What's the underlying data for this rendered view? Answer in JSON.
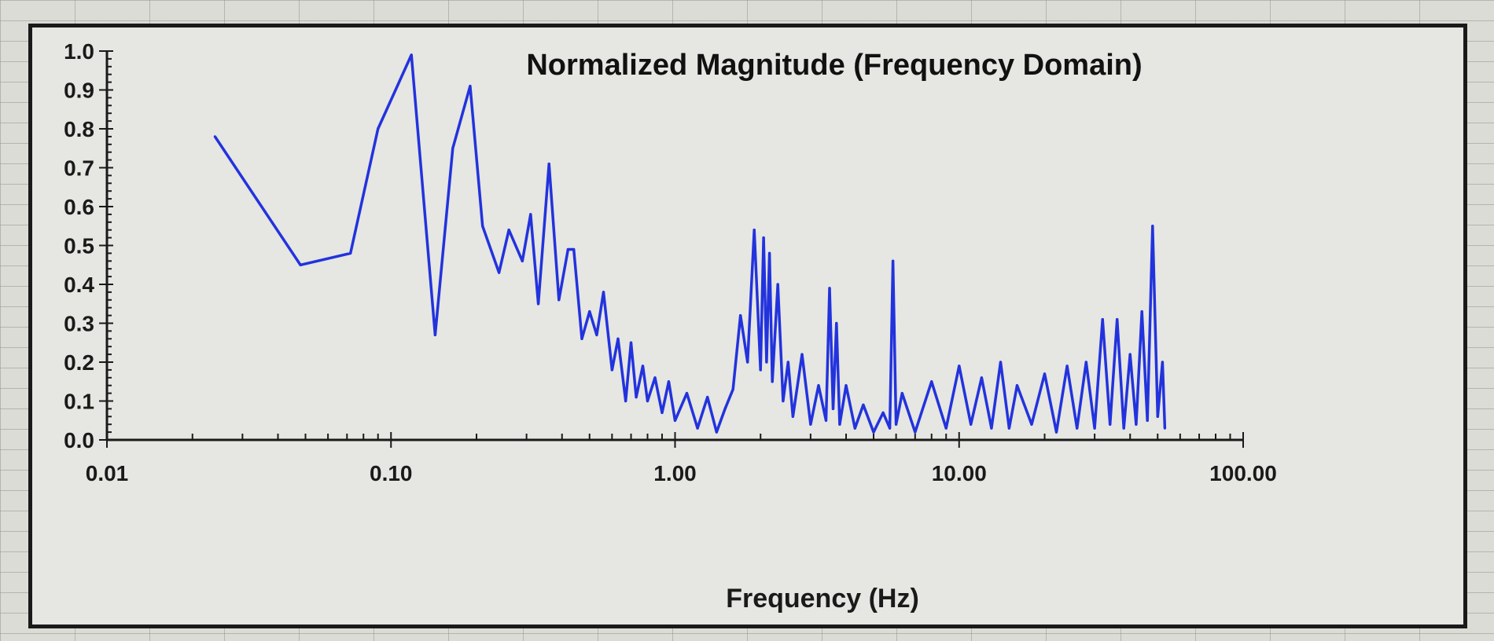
{
  "chart_data": {
    "type": "line",
    "title": "Normalized Magnitude (Frequency Domain)",
    "xlabel": "Frequency (Hz)",
    "ylabel": "",
    "xscale": "log",
    "xlim": [
      0.01,
      100
    ],
    "ylim": [
      0,
      1.0
    ],
    "grid": false,
    "legend": "none",
    "line_color": "#2233dd",
    "x_tick_labels": [
      "0.01",
      "0.10",
      "1.00",
      "10.00",
      "100.00"
    ],
    "y_tick_labels": [
      "0.0",
      "0.1",
      "0.2",
      "0.3",
      "0.4",
      "0.5",
      "0.6",
      "0.7",
      "0.8",
      "0.9",
      "1.0"
    ],
    "series": [
      {
        "x": [
          0.024,
          0.048,
          0.072,
          0.09,
          0.118,
          0.143,
          0.165,
          0.19,
          0.21,
          0.24,
          0.26,
          0.29,
          0.31,
          0.33,
          0.36,
          0.39,
          0.42,
          0.44,
          0.47,
          0.5,
          0.53,
          0.56,
          0.6,
          0.63,
          0.67,
          0.7,
          0.73,
          0.77,
          0.8,
          0.85,
          0.9,
          0.95,
          1.0,
          1.1,
          1.2,
          1.3,
          1.4,
          1.5,
          1.6,
          1.7,
          1.8,
          1.9,
          2.0,
          2.05,
          2.1,
          2.15,
          2.2,
          2.3,
          2.4,
          2.5,
          2.6,
          2.8,
          3.0,
          3.2,
          3.4,
          3.5,
          3.6,
          3.7,
          3.8,
          4.0,
          4.3,
          4.6,
          5.0,
          5.4,
          5.7,
          5.85,
          6.0,
          6.3,
          7.0,
          8.0,
          9.0,
          10.0,
          11.0,
          12.0,
          13.0,
          14.0,
          15.0,
          16.0,
          18.0,
          20.0,
          22.0,
          24.0,
          26.0,
          28.0,
          30.0,
          32.0,
          34.0,
          36.0,
          38.0,
          40.0,
          42.0,
          44.0,
          46.0,
          48.0,
          50.0,
          52.0,
          53.0
        ],
        "values": [
          0.78,
          0.45,
          0.48,
          0.8,
          0.99,
          0.27,
          0.75,
          0.91,
          0.55,
          0.43,
          0.54,
          0.46,
          0.58,
          0.35,
          0.71,
          0.36,
          0.49,
          0.49,
          0.26,
          0.33,
          0.27,
          0.38,
          0.18,
          0.26,
          0.1,
          0.25,
          0.11,
          0.19,
          0.1,
          0.16,
          0.07,
          0.15,
          0.05,
          0.12,
          0.03,
          0.11,
          0.02,
          0.08,
          0.13,
          0.32,
          0.2,
          0.54,
          0.18,
          0.52,
          0.2,
          0.48,
          0.15,
          0.4,
          0.1,
          0.2,
          0.06,
          0.22,
          0.04,
          0.14,
          0.05,
          0.39,
          0.08,
          0.3,
          0.04,
          0.14,
          0.03,
          0.09,
          0.02,
          0.07,
          0.03,
          0.46,
          0.04,
          0.12,
          0.02,
          0.15,
          0.03,
          0.19,
          0.04,
          0.16,
          0.03,
          0.2,
          0.03,
          0.14,
          0.04,
          0.17,
          0.02,
          0.19,
          0.03,
          0.2,
          0.03,
          0.31,
          0.04,
          0.31,
          0.03,
          0.22,
          0.04,
          0.33,
          0.05,
          0.55,
          0.06,
          0.2,
          0.03
        ]
      }
    ]
  }
}
